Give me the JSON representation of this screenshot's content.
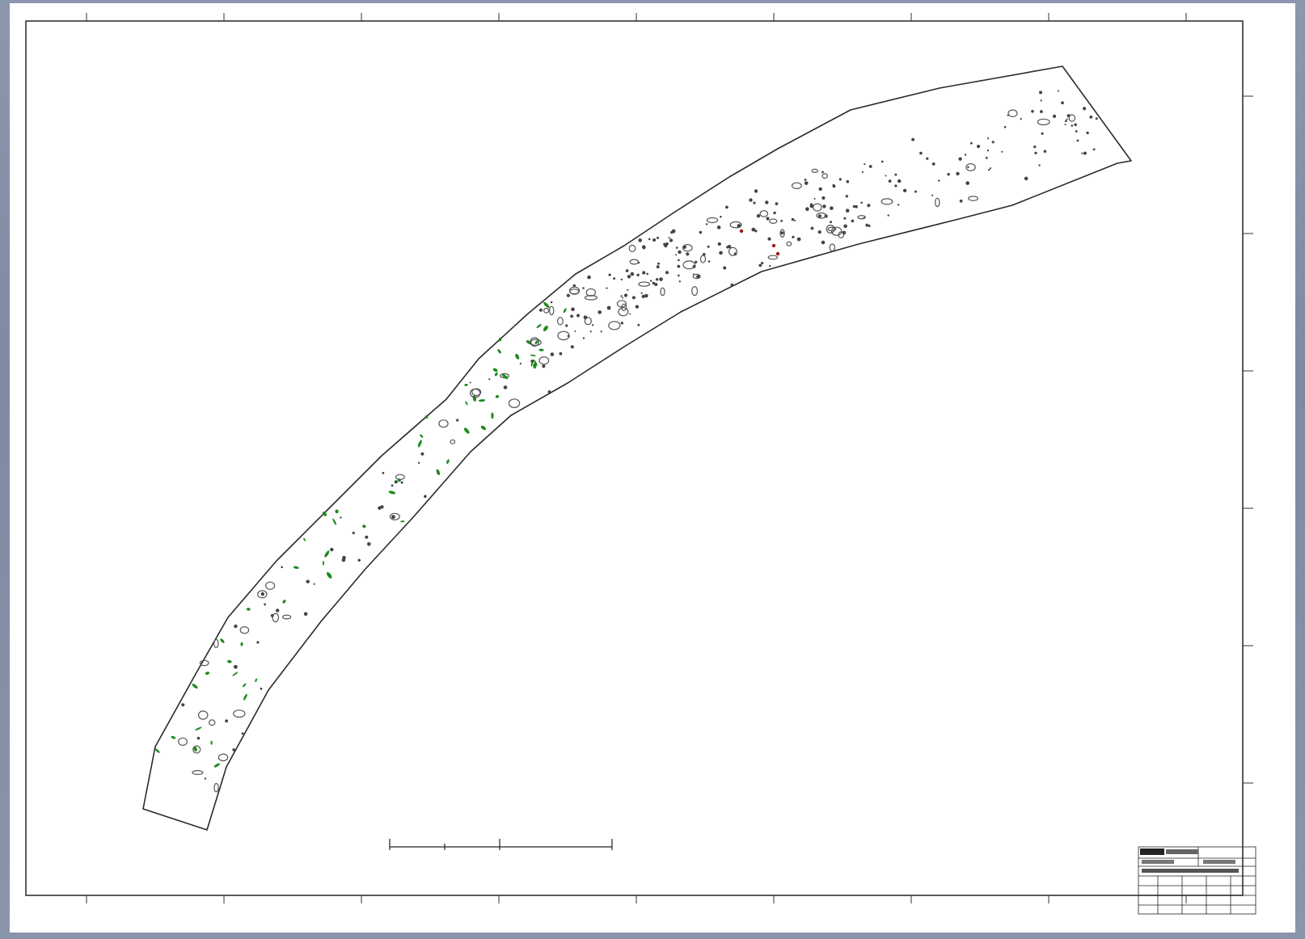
{
  "map": {
    "background_color": "#8a94aa",
    "sheet_color": "#ffffff",
    "feature_colors": {
      "outline": "#2a2a2a",
      "feature": "#444444",
      "green_feature": "#1d8a1d",
      "red_feature": "#a01818"
    }
  },
  "title_block": {
    "header": "",
    "rows": [
      "",
      "",
      "",
      ""
    ]
  },
  "scale_bar": {
    "labels": [
      "",
      "",
      "",
      ""
    ]
  },
  "grid_ticks": {
    "top_count": 9,
    "right_count": 7
  }
}
